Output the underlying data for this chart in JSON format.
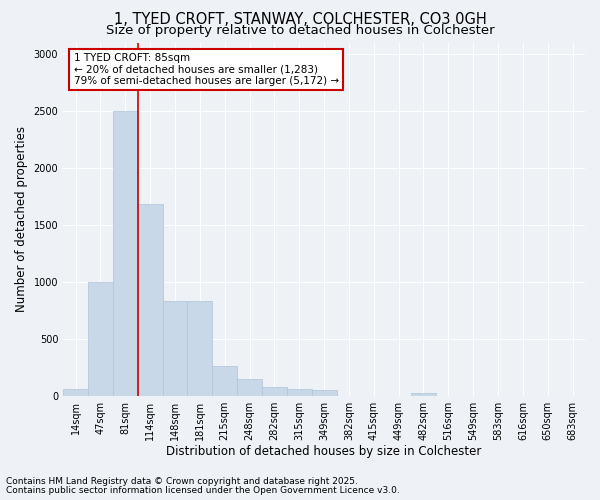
{
  "title_line1": "1, TYED CROFT, STANWAY, COLCHESTER, CO3 0GH",
  "title_line2": "Size of property relative to detached houses in Colchester",
  "xlabel": "Distribution of detached houses by size in Colchester",
  "ylabel": "Number of detached properties",
  "categories": [
    "14sqm",
    "47sqm",
    "81sqm",
    "114sqm",
    "148sqm",
    "181sqm",
    "215sqm",
    "248sqm",
    "282sqm",
    "315sqm",
    "349sqm",
    "382sqm",
    "415sqm",
    "449sqm",
    "482sqm",
    "516sqm",
    "549sqm",
    "583sqm",
    "616sqm",
    "650sqm",
    "683sqm"
  ],
  "values": [
    60,
    1000,
    2500,
    1680,
    830,
    830,
    260,
    150,
    80,
    60,
    50,
    0,
    0,
    0,
    30,
    0,
    0,
    0,
    0,
    0,
    0
  ],
  "bar_color": "#c8d8e8",
  "bar_edge_color": "#adc4d8",
  "vline_x": 2.5,
  "vline_color": "#cc0000",
  "ylim": [
    0,
    3100
  ],
  "yticks": [
    0,
    500,
    1000,
    1500,
    2000,
    2500,
    3000
  ],
  "annotation_text": "1 TYED CROFT: 85sqm\n← 20% of detached houses are smaller (1,283)\n79% of semi-detached houses are larger (5,172) →",
  "annotation_box_color": "#ffffff",
  "annotation_box_edge_color": "#cc0000",
  "footer_line1": "Contains HM Land Registry data © Crown copyright and database right 2025.",
  "footer_line2": "Contains public sector information licensed under the Open Government Licence v3.0.",
  "bg_color": "#eef2f7",
  "plot_bg_color": "#eef2f7",
  "title_fontsize": 10.5,
  "subtitle_fontsize": 9.5,
  "tick_fontsize": 7,
  "ylabel_fontsize": 8.5,
  "xlabel_fontsize": 8.5,
  "annotation_fontsize": 7.5,
  "footer_fontsize": 6.5
}
